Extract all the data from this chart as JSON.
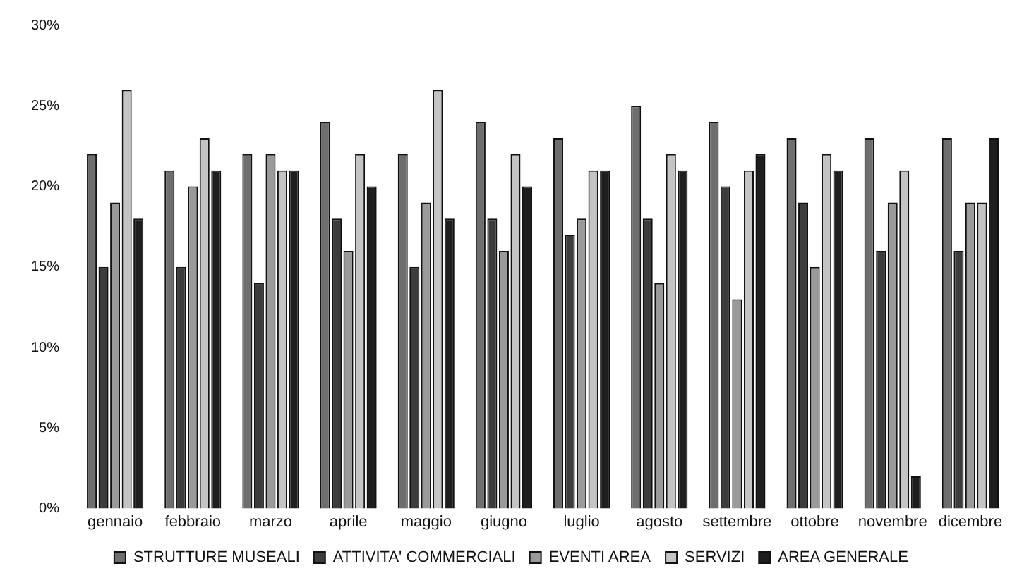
{
  "chart_data": {
    "type": "bar",
    "categories": [
      "gennaio",
      "febbraio",
      "marzo",
      "aprile",
      "maggio",
      "giugno",
      "luglio",
      "agosto",
      "settembre",
      "ottobre",
      "novembre",
      "dicembre"
    ],
    "series": [
      {
        "name": "STRUTTURE MUSEALI",
        "color": "#6e6e6e",
        "values": [
          22,
          21,
          22,
          24,
          22,
          24,
          23,
          25,
          24,
          23,
          23,
          23
        ]
      },
      {
        "name": "ATTIVITA' COMMERCIALI",
        "color": "#3c3c3c",
        "values": [
          15,
          15,
          14,
          18,
          15,
          18,
          17,
          18,
          20,
          19,
          16,
          16
        ]
      },
      {
        "name": "EVENTI AREA",
        "color": "#9a9a9a",
        "values": [
          19,
          20,
          22,
          16,
          19,
          16,
          18,
          14,
          13,
          15,
          19,
          19
        ]
      },
      {
        "name": "SERVIZI",
        "color": "#c4c4c4",
        "values": [
          26,
          23,
          21,
          22,
          26,
          22,
          21,
          22,
          21,
          22,
          21,
          19
        ]
      },
      {
        "name": "AREA GENERALE",
        "color": "#1e1e1e",
        "values": [
          18,
          21,
          21,
          20,
          18,
          20,
          21,
          21,
          22,
          21,
          2,
          23
        ]
      }
    ],
    "ylim": [
      0,
      30
    ],
    "yticks": [
      {
        "value": 0,
        "label": "0%"
      },
      {
        "value": 5,
        "label": "5%"
      },
      {
        "value": 10,
        "label": "10%"
      },
      {
        "value": 15,
        "label": "15%"
      },
      {
        "value": 20,
        "label": "20%"
      },
      {
        "value": 25,
        "label": "25%"
      },
      {
        "value": 30,
        "label": "30%"
      }
    ],
    "grid": false,
    "legend": "bottom"
  }
}
